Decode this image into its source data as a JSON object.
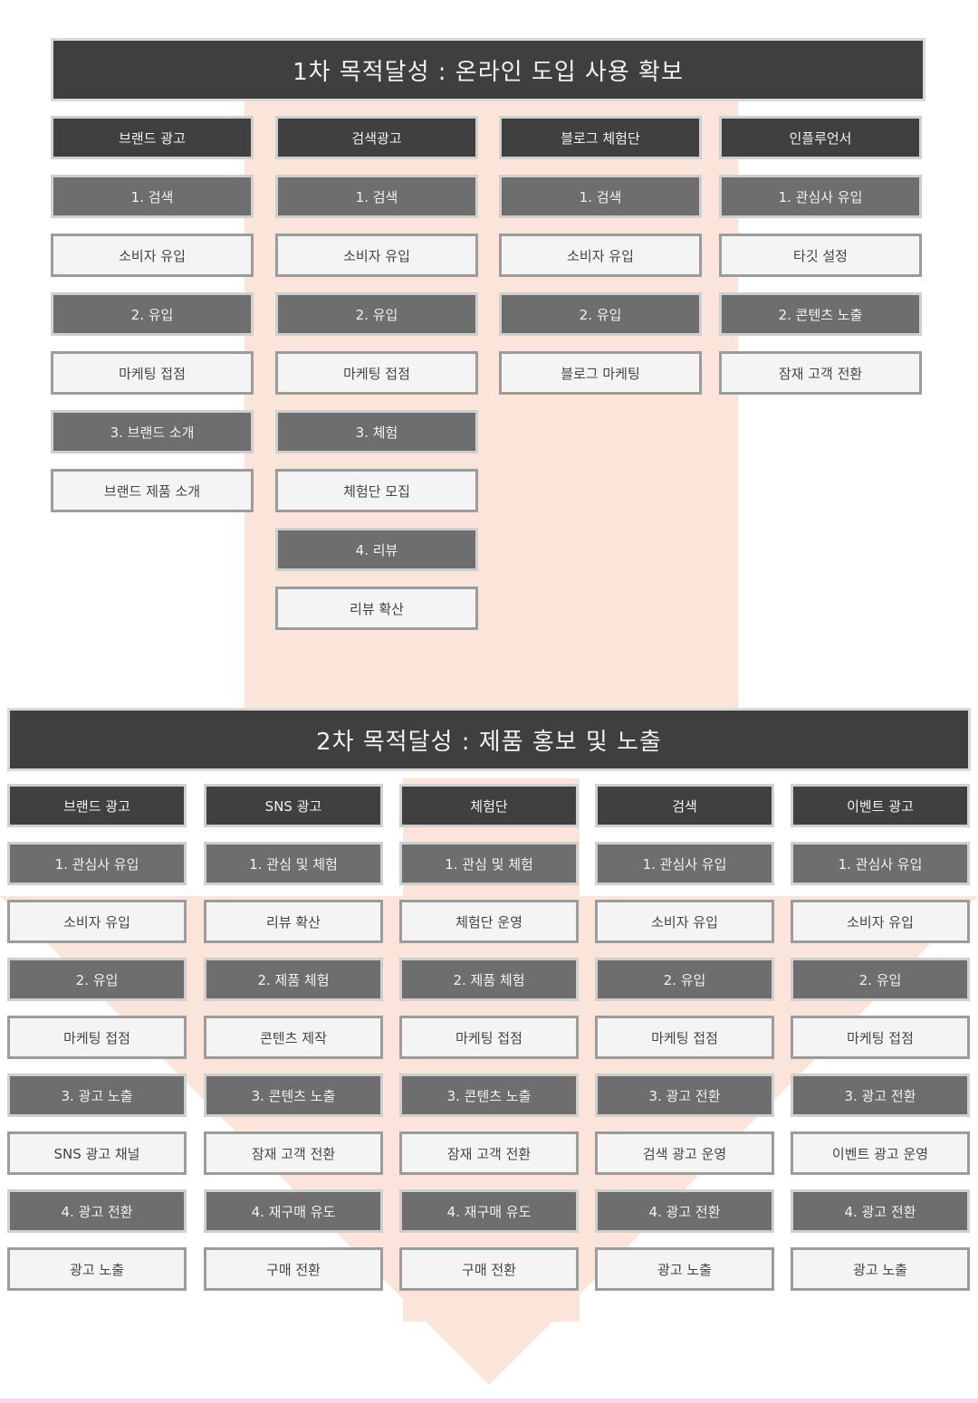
{
  "phase1": {
    "title": "1차 목적달성 : 온라인 도입 사용 확보",
    "columns": [
      {
        "header": "브랜드 광고",
        "items": [
          {
            "step": "1. 검색",
            "target": "소비자 유입"
          },
          {
            "step": "2. 유입",
            "target": "마케팅 접점"
          },
          {
            "step": "3. 브랜드 소개",
            "target": "브랜드 제품 소개"
          }
        ]
      },
      {
        "header": "검색광고",
        "items": [
          {
            "step": "1. 검색",
            "target": "소비자 유입"
          },
          {
            "step": "2. 유입",
            "target": "마케팅 접점"
          },
          {
            "step": "3. 체험",
            "target": "체험단 모집"
          },
          {
            "step": "4. 리뷰",
            "target": "리뷰 확산"
          }
        ]
      },
      {
        "header": "블로그 체험단",
        "items": [
          {
            "step": "1. 검색",
            "target": "소비자 유입"
          },
          {
            "step": "2. 유입",
            "target": "블로그 마케팅"
          }
        ]
      },
      {
        "header": "인플루언서",
        "items": [
          {
            "step": "1. 관심사 유입",
            "target": "타깃 설정"
          },
          {
            "step": "2. 콘텐츠 노출",
            "target": "잠재 고객 전환"
          }
        ]
      }
    ]
  },
  "phase2": {
    "title": "2차 목적달성 : 제품 홍보 및 노출",
    "columns": [
      {
        "header": "브랜드 광고",
        "items": [
          {
            "step": "1. 관심사 유입",
            "target": "소비자 유입"
          },
          {
            "step": "2. 유입",
            "target": "마케팅 접점"
          },
          {
            "step": "3. 광고 노출",
            "target": "SNS 광고 채널"
          },
          {
            "step": "4. 광고 전환",
            "target": "광고 노출"
          }
        ]
      },
      {
        "header": "SNS 광고",
        "items": [
          {
            "step": "1. 관심 및 체험",
            "target": "리뷰 확산"
          },
          {
            "step": "2. 제품 체험",
            "target": "콘텐츠 제작"
          },
          {
            "step": "3. 콘텐츠 노출",
            "target": "잠재 고객 전환"
          },
          {
            "step": "4. 재구매 유도",
            "target": "구매 전환"
          }
        ]
      },
      {
        "header": "체험단",
        "items": [
          {
            "step": "1. 관심 및 체험",
            "target": "체험단 운영"
          },
          {
            "step": "2. 제품 체험",
            "target": "마케팅 접점"
          },
          {
            "step": "3. 콘텐츠 노출",
            "target": "잠재 고객 전환"
          },
          {
            "step": "4. 재구매 유도",
            "target": "구매 전환"
          }
        ]
      },
      {
        "header": "검색",
        "items": [
          {
            "step": "1. 관심사 유입",
            "target": "소비자 유입"
          },
          {
            "step": "2. 유입",
            "target": "마케팅 접점"
          },
          {
            "step": "3. 광고 전환",
            "target": "검색 광고 운영"
          },
          {
            "step": "4. 광고 전환",
            "target": "광고 노출"
          }
        ]
      },
      {
        "header": "이벤트 광고",
        "items": [
          {
            "step": "1. 관심사 유입",
            "target": "소비자 유입"
          },
          {
            "step": "2. 유입",
            "target": "마케팅 접점"
          },
          {
            "step": "3. 광고 전환",
            "target": "이벤트 광고 운영"
          },
          {
            "step": "4. 광고 전환",
            "target": "광고 노출"
          }
        ]
      }
    ]
  },
  "colors": {
    "banner": "#3f3f3f",
    "header": "#404040",
    "step": "#6e6e6e",
    "box": "#f4f4f4",
    "arrow": "#fbe5da"
  }
}
